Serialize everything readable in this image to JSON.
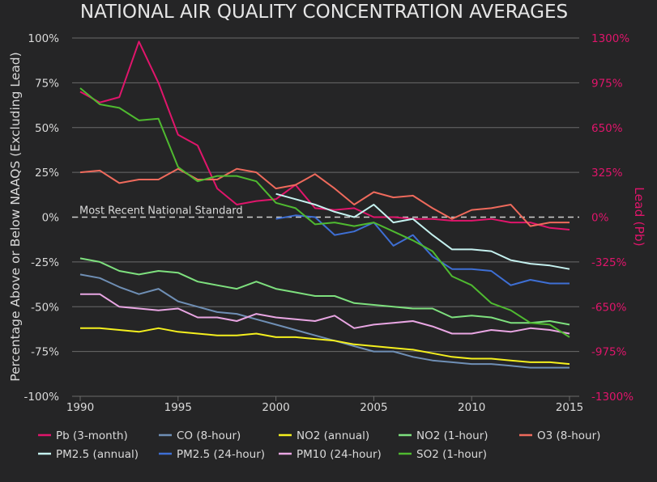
{
  "chart_data": {
    "type": "line",
    "title": "NATIONAL AIR QUALITY CONCENTRATION AVERAGES",
    "xlabel": "",
    "ylabel": "Percentage Above or Below NAAQS (Excluding Lead)",
    "ylabel_right": "Lead (Pb)",
    "x": [
      1990,
      1991,
      1992,
      1993,
      1994,
      1995,
      1996,
      1997,
      1998,
      1999,
      2000,
      2001,
      2002,
      2003,
      2004,
      2005,
      2006,
      2007,
      2008,
      2009,
      2010,
      2011,
      2012,
      2013,
      2014,
      2015
    ],
    "x_ticks": [
      "1990",
      "1995",
      "2000",
      "2005",
      "2010",
      "2015"
    ],
    "xlim": [
      1990,
      2015
    ],
    "ylim": [
      -100,
      100
    ],
    "y_ticks": [
      "100%",
      "75%",
      "50%",
      "25%",
      "0%",
      "-25%",
      "-50%",
      "-75%",
      "-100%"
    ],
    "y_tick_values": [
      100,
      75,
      50,
      25,
      0,
      -25,
      -50,
      -75,
      -100
    ],
    "ylim_right": [
      -1300,
      1300
    ],
    "y_ticks_right": [
      "1300%",
      "975%",
      "650%",
      "325%",
      "0%",
      "-325%",
      "-650%",
      "-975%",
      "-1300%"
    ],
    "grid": true,
    "legend_position": "bottom",
    "reference_line": {
      "value": 0,
      "label": "Most Recent National Standard"
    },
    "series": [
      {
        "name": "Pb (3-month)",
        "color": "#e0156b",
        "axis": "right",
        "values": [
          70,
          64,
          67,
          98,
          75,
          46,
          40,
          16,
          7,
          9,
          10,
          18,
          5,
          4,
          5,
          0,
          0,
          -1,
          -1,
          -2,
          -2,
          -1,
          -3,
          -3,
          -6,
          -7
        ]
      },
      {
        "name": "CO (8-hour)",
        "color": "#6f8fb5",
        "values": [
          -32,
          -34,
          -39,
          -43,
          -40,
          -47,
          -50,
          -53,
          -54,
          -57,
          -60,
          -63,
          -66,
          -69,
          -72,
          -75,
          -75,
          -78,
          -80,
          -81,
          -82,
          -82,
          -83,
          -84,
          -84,
          -84
        ]
      },
      {
        "name": "NO2 (annual)",
        "color": "#f5f01e",
        "values": [
          -62,
          -62,
          -63,
          -64,
          -62,
          -64,
          -65,
          -66,
          -66,
          -65,
          -67,
          -67,
          -68,
          -69,
          -71,
          -72,
          -73,
          -74,
          -76,
          -78,
          -79,
          -79,
          -80,
          -81,
          -81,
          -82
        ]
      },
      {
        "name": "NO2 (1-hour)",
        "color": "#7ee07e",
        "values": [
          -23,
          -25,
          -30,
          -32,
          -30,
          -31,
          -36,
          -38,
          -40,
          -36,
          -40,
          -42,
          -44,
          -44,
          -48,
          -49,
          -50,
          -51,
          -51,
          -56,
          -55,
          -56,
          -59,
          -59,
          -58,
          -60
        ]
      },
      {
        "name": "O3 (8-hour)",
        "color": "#ef6a5c",
        "values": [
          25,
          26,
          19,
          21,
          21,
          27,
          21,
          21,
          27,
          25,
          16,
          18,
          24,
          16,
          7,
          14,
          11,
          12,
          5,
          -1,
          4,
          5,
          7,
          -5,
          -3,
          -3
        ]
      },
      {
        "name": "PM2.5 (annual)",
        "color": "#c5f1ef",
        "values": [
          null,
          null,
          null,
          null,
          null,
          null,
          null,
          null,
          null,
          null,
          13,
          10,
          7,
          3,
          0,
          7,
          -3,
          -1,
          -10,
          -18,
          -18,
          -19,
          -24,
          -26,
          -27,
          -29
        ]
      },
      {
        "name": "PM2.5 (24-hour)",
        "color": "#3e6fd4",
        "values": [
          null,
          null,
          null,
          null,
          null,
          null,
          null,
          null,
          null,
          null,
          -1,
          1,
          0,
          -10,
          -8,
          -3,
          -16,
          -10,
          -22,
          -29,
          -29,
          -30,
          -38,
          -35,
          -37,
          -37
        ]
      },
      {
        "name": "PM10 (24-hour)",
        "color": "#e9a6e3",
        "values": [
          -43,
          -43,
          -50,
          -51,
          -52,
          -51,
          -56,
          -56,
          -58,
          -54,
          -56,
          -57,
          -58,
          -55,
          -62,
          -60,
          -59,
          -58,
          -61,
          -65,
          -65,
          -63,
          -64,
          -62,
          -63,
          -65
        ]
      },
      {
        "name": "SO2 (1-hour)",
        "color": "#4fba30",
        "values": [
          72,
          63,
          61,
          54,
          55,
          28,
          20,
          23,
          23,
          20,
          8,
          5,
          -4,
          -3,
          -5,
          -3,
          -8,
          -13,
          -19,
          -33,
          -38,
          -48,
          -52,
          -59,
          -60,
          -67
        ]
      }
    ]
  }
}
